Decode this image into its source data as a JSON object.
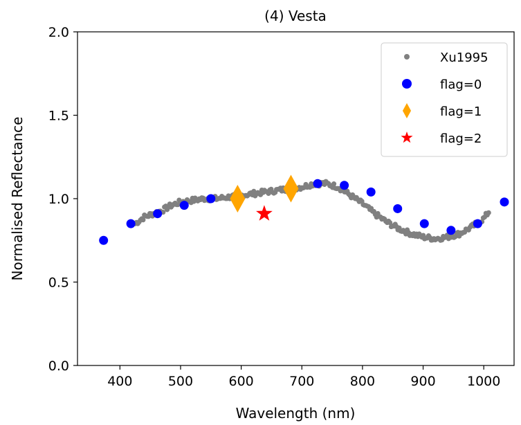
{
  "chart_data": {
    "type": "scatter",
    "title": "(4) Vesta",
    "xlabel": "Wavelength (nm)",
    "ylabel": "Normalised Reflectance",
    "xlim": [
      330,
      1050
    ],
    "ylim": [
      0.0,
      2.0
    ],
    "xticks": [
      400,
      500,
      600,
      700,
      800,
      900,
      1000
    ],
    "yticks": [
      0.0,
      0.5,
      1.0,
      1.5,
      2.0
    ],
    "xtick_labels": [
      "400",
      "500",
      "600",
      "700",
      "800",
      "900",
      "1000"
    ],
    "ytick_labels": [
      "0.0",
      "0.5",
      "1.0",
      "1.5",
      "2.0"
    ],
    "grid": false,
    "legend_position": "top-right",
    "series": [
      {
        "name": "Xu1995",
        "marker": "circle-small",
        "color": "#808080",
        "curve": {
          "x": [
            425,
            440,
            455,
            470,
            485,
            500,
            520,
            540,
            560,
            580,
            600,
            620,
            640,
            660,
            680,
            700,
            720,
            740,
            760,
            780,
            800,
            820,
            840,
            860,
            880,
            900,
            920,
            940,
            960,
            980,
            1000,
            1010
          ],
          "y": [
            0.85,
            0.89,
            0.91,
            0.93,
            0.96,
            0.98,
            0.99,
            1.0,
            1.0,
            1.01,
            1.02,
            1.03,
            1.04,
            1.05,
            1.06,
            1.07,
            1.09,
            1.09,
            1.07,
            1.02,
            0.97,
            0.91,
            0.86,
            0.82,
            0.79,
            0.77,
            0.76,
            0.77,
            0.79,
            0.83,
            0.88,
            0.93
          ]
        }
      },
      {
        "name": "flag=0",
        "marker": "circle",
        "color": "#0000ff",
        "x": [
          373,
          418,
          462,
          506,
          550,
          726,
          770,
          814,
          858,
          902,
          946,
          990,
          1034
        ],
        "y": [
          0.75,
          0.85,
          0.91,
          0.96,
          1.0,
          1.09,
          1.08,
          1.04,
          0.94,
          0.85,
          0.81,
          0.85,
          0.98
        ]
      },
      {
        "name": "flag=1",
        "marker": "diamond",
        "color": "#ffa500",
        "x": [
          594,
          682
        ],
        "y": [
          1.0,
          1.06
        ]
      },
      {
        "name": "flag=2",
        "marker": "star",
        "color": "#ff0000",
        "x": [
          638
        ],
        "y": [
          0.91
        ]
      }
    ]
  }
}
